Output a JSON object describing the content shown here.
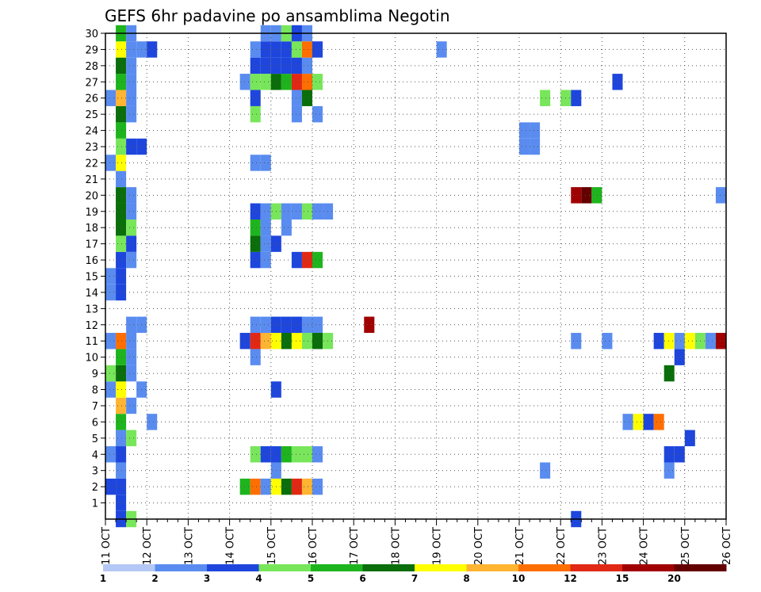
{
  "chart_data": {
    "type": "heatmap",
    "title": "GEFS 6hr padavine po ansamblima Negotin",
    "xlabel": "",
    "ylabel": "",
    "x_ticks": [
      "11 OCT",
      "12 OCT",
      "13 OCT",
      "14 OCT",
      "15 OCT",
      "16 OCT",
      "17 OCT",
      "18 OCT",
      "19 OCT",
      "20 OCT",
      "21 OCT",
      "22 OCT",
      "23 OCT",
      "24 OCT",
      "25 OCT",
      "26 OCT"
    ],
    "y_ticks": [
      1,
      2,
      3,
      4,
      5,
      6,
      7,
      8,
      9,
      10,
      11,
      12,
      13,
      14,
      15,
      16,
      17,
      18,
      19,
      20,
      21,
      22,
      23,
      24,
      25,
      26,
      27,
      28,
      29,
      30
    ],
    "x_unit": "6-hour steps from 11 OCT 00Z (4 per day)",
    "xlim": [
      0,
      60
    ],
    "ylim": [
      0,
      30
    ],
    "grid": true,
    "legend": {
      "placement": "bottom",
      "bin_edges": [
        "1",
        "2",
        "3",
        "4",
        "5",
        "6",
        "7",
        "8",
        "10",
        "12",
        "15",
        "20"
      ],
      "colors": [
        "#b4c8f5",
        "#5a8cf0",
        "#1e46dc",
        "#78e65a",
        "#1eb41e",
        "#0a6e0a",
        "#ffff00",
        "#ffb432",
        "#ff6e00",
        "#e12814",
        "#a00000",
        "#640000"
      ]
    },
    "cells": [
      [
        1,
        0,
        2
      ],
      [
        1,
        1,
        2
      ],
      [
        1,
        2,
        2
      ],
      [
        1,
        3,
        1
      ],
      [
        1,
        4,
        2
      ],
      [
        1,
        5,
        1
      ],
      [
        1,
        6,
        4
      ],
      [
        1,
        7,
        7
      ],
      [
        1,
        8,
        6
      ],
      [
        1,
        9,
        5
      ],
      [
        1,
        10,
        4
      ],
      [
        1,
        11,
        8
      ],
      [
        1,
        14,
        2
      ],
      [
        1,
        15,
        2
      ],
      [
        1,
        16,
        2
      ],
      [
        1,
        17,
        3
      ],
      [
        1,
        18,
        5
      ],
      [
        1,
        19,
        5
      ],
      [
        1,
        20,
        5
      ],
      [
        1,
        21,
        1
      ],
      [
        1,
        22,
        6
      ],
      [
        1,
        23,
        3
      ],
      [
        1,
        24,
        4
      ],
      [
        1,
        25,
        5
      ],
      [
        1,
        26,
        7
      ],
      [
        1,
        27,
        4
      ],
      [
        1,
        28,
        5
      ],
      [
        1,
        29,
        6
      ],
      [
        1,
        30,
        4
      ],
      [
        2,
        0,
        3
      ],
      [
        2,
        5,
        3
      ],
      [
        2,
        7,
        1
      ],
      [
        2,
        9,
        1
      ],
      [
        2,
        10,
        1
      ],
      [
        2,
        11,
        1
      ],
      [
        2,
        12,
        1
      ],
      [
        2,
        16,
        1
      ],
      [
        2,
        17,
        2
      ],
      [
        2,
        18,
        3
      ],
      [
        2,
        19,
        1
      ],
      [
        2,
        20,
        1
      ],
      [
        2,
        23,
        2
      ],
      [
        2,
        25,
        1
      ],
      [
        2,
        26,
        1
      ],
      [
        2,
        27,
        1
      ],
      [
        2,
        28,
        1
      ],
      [
        2,
        29,
        1
      ],
      [
        2,
        30,
        1
      ],
      [
        0,
        2,
        2
      ],
      [
        0,
        4,
        1
      ],
      [
        0,
        8,
        1
      ],
      [
        0,
        9,
        3
      ],
      [
        0,
        11,
        1
      ],
      [
        0,
        14,
        1
      ],
      [
        0,
        15,
        1
      ],
      [
        0,
        22,
        1
      ],
      [
        0,
        26,
        1
      ],
      [
        3,
        8,
        1
      ],
      [
        3,
        12,
        1
      ],
      [
        3,
        23,
        2
      ],
      [
        3,
        29,
        1
      ],
      [
        4,
        6,
        1
      ],
      [
        4,
        29,
        2
      ],
      [
        13,
        2,
        4
      ],
      [
        13,
        11,
        2
      ],
      [
        13,
        27,
        1
      ],
      [
        14,
        2,
        8
      ],
      [
        14,
        4,
        3
      ],
      [
        14,
        10,
        1
      ],
      [
        14,
        11,
        9
      ],
      [
        14,
        12,
        1
      ],
      [
        14,
        16,
        2
      ],
      [
        14,
        17,
        5
      ],
      [
        14,
        18,
        4
      ],
      [
        14,
        19,
        2
      ],
      [
        14,
        22,
        1
      ],
      [
        14,
        25,
        3
      ],
      [
        14,
        26,
        2
      ],
      [
        14,
        27,
        3
      ],
      [
        14,
        28,
        2
      ],
      [
        14,
        29,
        1
      ],
      [
        15,
        2,
        1
      ],
      [
        15,
        4,
        2
      ],
      [
        15,
        11,
        7
      ],
      [
        15,
        12,
        1
      ],
      [
        15,
        16,
        1
      ],
      [
        15,
        17,
        1
      ],
      [
        15,
        18,
        1
      ],
      [
        15,
        19,
        1
      ],
      [
        15,
        22,
        1
      ],
      [
        15,
        27,
        3
      ],
      [
        15,
        28,
        2
      ],
      [
        15,
        29,
        2
      ],
      [
        15,
        30,
        1
      ],
      [
        16,
        2,
        6
      ],
      [
        16,
        3,
        1
      ],
      [
        16,
        4,
        2
      ],
      [
        16,
        8,
        2
      ],
      [
        16,
        11,
        6
      ],
      [
        16,
        12,
        2
      ],
      [
        16,
        17,
        2
      ],
      [
        16,
        19,
        3
      ],
      [
        16,
        27,
        5
      ],
      [
        16,
        28,
        2
      ],
      [
        16,
        29,
        2
      ],
      [
        16,
        30,
        1
      ],
      [
        17,
        2,
        5
      ],
      [
        17,
        4,
        4
      ],
      [
        17,
        11,
        5
      ],
      [
        17,
        12,
        2
      ],
      [
        17,
        18,
        1
      ],
      [
        17,
        19,
        1
      ],
      [
        17,
        27,
        4
      ],
      [
        17,
        28,
        2
      ],
      [
        17,
        29,
        2
      ],
      [
        17,
        30,
        3
      ],
      [
        18,
        2,
        9
      ],
      [
        18,
        4,
        3
      ],
      [
        18,
        11,
        6
      ],
      [
        18,
        12,
        2
      ],
      [
        18,
        16,
        2
      ],
      [
        18,
        19,
        1
      ],
      [
        18,
        25,
        1
      ],
      [
        18,
        26,
        1
      ],
      [
        18,
        27,
        9
      ],
      [
        18,
        28,
        2
      ],
      [
        18,
        29,
        3
      ],
      [
        18,
        30,
        2
      ],
      [
        19,
        2,
        7
      ],
      [
        19,
        4,
        3
      ],
      [
        19,
        11,
        3
      ],
      [
        19,
        12,
        1
      ],
      [
        19,
        16,
        9
      ],
      [
        19,
        19,
        3
      ],
      [
        19,
        26,
        5
      ],
      [
        19,
        27,
        8
      ],
      [
        19,
        28,
        1
      ],
      [
        19,
        29,
        8
      ],
      [
        19,
        30,
        1
      ],
      [
        20,
        2,
        1
      ],
      [
        20,
        4,
        1
      ],
      [
        20,
        11,
        5
      ],
      [
        20,
        12,
        1
      ],
      [
        20,
        16,
        4
      ],
      [
        20,
        19,
        1
      ],
      [
        20,
        25,
        1
      ],
      [
        20,
        27,
        3
      ],
      [
        20,
        29,
        2
      ],
      [
        21,
        11,
        3
      ],
      [
        21,
        19,
        1
      ],
      [
        25,
        12,
        10
      ],
      [
        32,
        29,
        1
      ],
      [
        40,
        23,
        1
      ],
      [
        40,
        24,
        1
      ],
      [
        41,
        23,
        1
      ],
      [
        41,
        24,
        1
      ],
      [
        42,
        3,
        1
      ],
      [
        42,
        26,
        3
      ],
      [
        44,
        26,
        3
      ],
      [
        45,
        0,
        2
      ],
      [
        45,
        11,
        1
      ],
      [
        45,
        20,
        10
      ],
      [
        45,
        26,
        2
      ],
      [
        46,
        20,
        11
      ],
      [
        47,
        20,
        4
      ],
      [
        48,
        11,
        1
      ],
      [
        49,
        27,
        2
      ],
      [
        50,
        6,
        1
      ],
      [
        51,
        6,
        6
      ],
      [
        52,
        6,
        2
      ],
      [
        53,
        6,
        8
      ],
      [
        53,
        11,
        2
      ],
      [
        54,
        3,
        1
      ],
      [
        54,
        4,
        2
      ],
      [
        54,
        9,
        5
      ],
      [
        54,
        11,
        6
      ],
      [
        55,
        4,
        2
      ],
      [
        55,
        10,
        2
      ],
      [
        55,
        11,
        1
      ],
      [
        56,
        5,
        2
      ],
      [
        56,
        11,
        6
      ],
      [
        57,
        11,
        3
      ],
      [
        58,
        11,
        1
      ],
      [
        59,
        11,
        10
      ],
      [
        59,
        20,
        1
      ]
    ]
  }
}
